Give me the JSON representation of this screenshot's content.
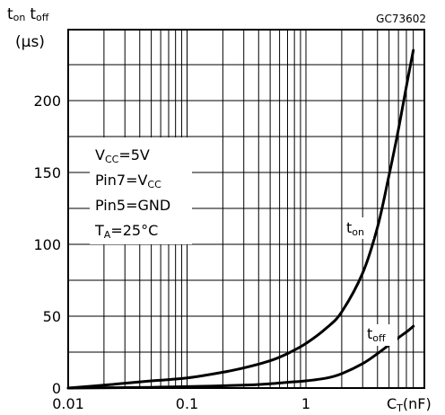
{
  "figure_code": "GC73602",
  "chart_data": {
    "type": "line",
    "title": "",
    "x_scale": "log",
    "xlim": [
      0.01,
      8
    ],
    "ylim": [
      0,
      250
    ],
    "grid": true,
    "x_tick_labels": [
      "0.01",
      "0.1",
      "1"
    ],
    "y_tick_labels": [
      "0",
      "50",
      "100",
      "150",
      "200"
    ],
    "xlabel": {
      "main": "C",
      "sub": "T",
      "tail": "(nF)"
    },
    "ylabel": {
      "t1": "t",
      "t1_sub": "on",
      "t2": "t",
      "t2_sub": "off",
      "unit": "(µs)"
    },
    "conditions": [
      {
        "main": "V",
        "sub": "CC",
        "tail": "=5V"
      },
      {
        "main": "Pin7=V",
        "sub": "CC",
        "tail": ""
      },
      {
        "main": "Pin5=GND",
        "sub": "",
        "tail": ""
      },
      {
        "main": "T",
        "sub": "A",
        "tail": "=25°C"
      }
    ],
    "series": [
      {
        "name": "t on",
        "label_main": "t",
        "label_sub": "on",
        "x": [
          0.01,
          0.02,
          0.05,
          0.1,
          0.2,
          0.3,
          0.5,
          0.7,
          1,
          1.5,
          2,
          3,
          4,
          5,
          6,
          7,
          8
        ],
        "y": [
          0,
          2,
          5,
          7,
          11,
          14,
          19,
          24,
          31,
          42,
          53,
          80,
          112,
          148,
          180,
          210,
          235
        ]
      },
      {
        "name": "t off",
        "label_main": "t",
        "label_sub": "off",
        "x": [
          0.01,
          0.05,
          0.1,
          0.3,
          0.5,
          0.7,
          1,
          1.5,
          2,
          3,
          4,
          5,
          6,
          7,
          8
        ],
        "y": [
          0,
          0.5,
          1,
          2,
          3,
          4,
          5,
          7,
          10,
          17,
          24,
          30,
          35,
          39,
          43
        ]
      }
    ]
  }
}
